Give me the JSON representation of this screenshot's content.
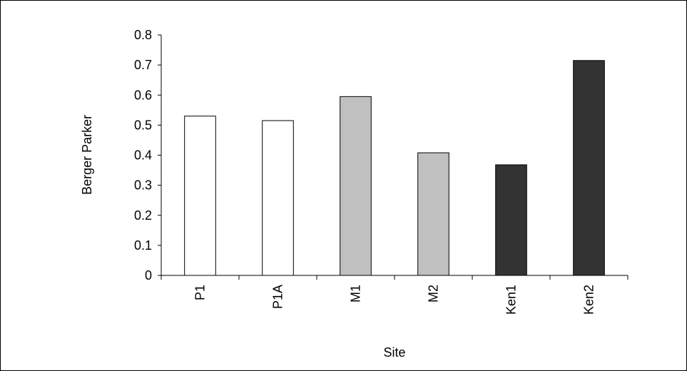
{
  "chart_data": {
    "type": "bar",
    "title": "",
    "xlabel": "Site",
    "ylabel": "Berger Parker",
    "categories": [
      "P1",
      "P1A",
      "M1",
      "M2",
      "Ken1",
      "Ken2"
    ],
    "values": [
      0.53,
      0.515,
      0.595,
      0.408,
      0.368,
      0.715
    ],
    "bar_colors": [
      "#ffffff",
      "#ffffff",
      "#c0c0c0",
      "#c0c0c0",
      "#333333",
      "#333333"
    ],
    "ylim": [
      0,
      0.8
    ],
    "yticks": [
      "0",
      "0.1",
      "0.2",
      "0.3",
      "0.4",
      "0.5",
      "0.6",
      "0.7",
      "0.8"
    ],
    "grid": false,
    "legend": "none"
  }
}
